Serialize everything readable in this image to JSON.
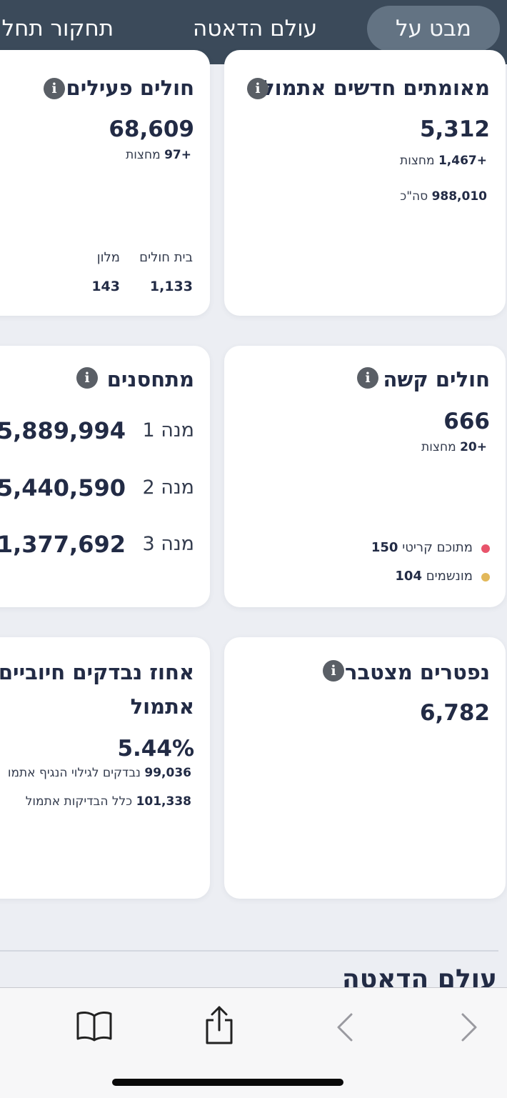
{
  "nav": {
    "tabs": [
      {
        "label": "מבט על",
        "active": true
      },
      {
        "label": "עולם הדאטה",
        "active": false
      },
      {
        "label": "תחקור תחלו",
        "active": false
      }
    ]
  },
  "cards": {
    "new_confirmed": {
      "title": "מאומתים חדשים אתמול",
      "value": "5,312",
      "midnight_value": "+1,467",
      "midnight_label": "מחצות",
      "total_value": "988,010",
      "total_label": "סה\"כ"
    },
    "active": {
      "title": "חולים פעילים",
      "value": "68,609",
      "midnight_value": "+97",
      "midnight_label": "מחצות",
      "hospital_label": "בית חולים",
      "hotel_label": "מלון",
      "hospital_value": "1,133",
      "hotel_value": "143"
    },
    "severe": {
      "title": "חולים קשה",
      "value": "666",
      "midnight_value": "+20",
      "midnight_label": "מחצות",
      "critical_label": "מתוכם קריטי",
      "critical_value": "150",
      "ventilated_label": "מונשמים",
      "ventilated_value": "104",
      "critical_color": "#e8546b",
      "ventilated_color": "#e2b85a"
    },
    "vaccinated": {
      "title": "מתחסנים",
      "doses": [
        {
          "label": "מנה 1",
          "value": "5,889,994"
        },
        {
          "label": "מנה 2",
          "value": "5,440,590"
        },
        {
          "label": "מנה 3",
          "value": "1,377,692"
        }
      ]
    },
    "deaths": {
      "title": "נפטרים מצטבר",
      "value": "6,782"
    },
    "positive_rate": {
      "title_line1": "אחוז נבדקים חיוביים",
      "title_line2": "אתמול",
      "value": "5.44%",
      "tested_value": "99,036",
      "tested_label": "נבדקים לגילוי הנגיף אתמו",
      "all_tests_value": "101,338",
      "all_tests_label": "כלל הבדיקות אתמול"
    }
  },
  "section": {
    "title": "עולם הדאטה"
  },
  "info_glyph": "i",
  "toolbar": {
    "icons": [
      "chevron-right-icon",
      "chevron-left-icon",
      "share-icon",
      "bookmarks-icon"
    ]
  }
}
